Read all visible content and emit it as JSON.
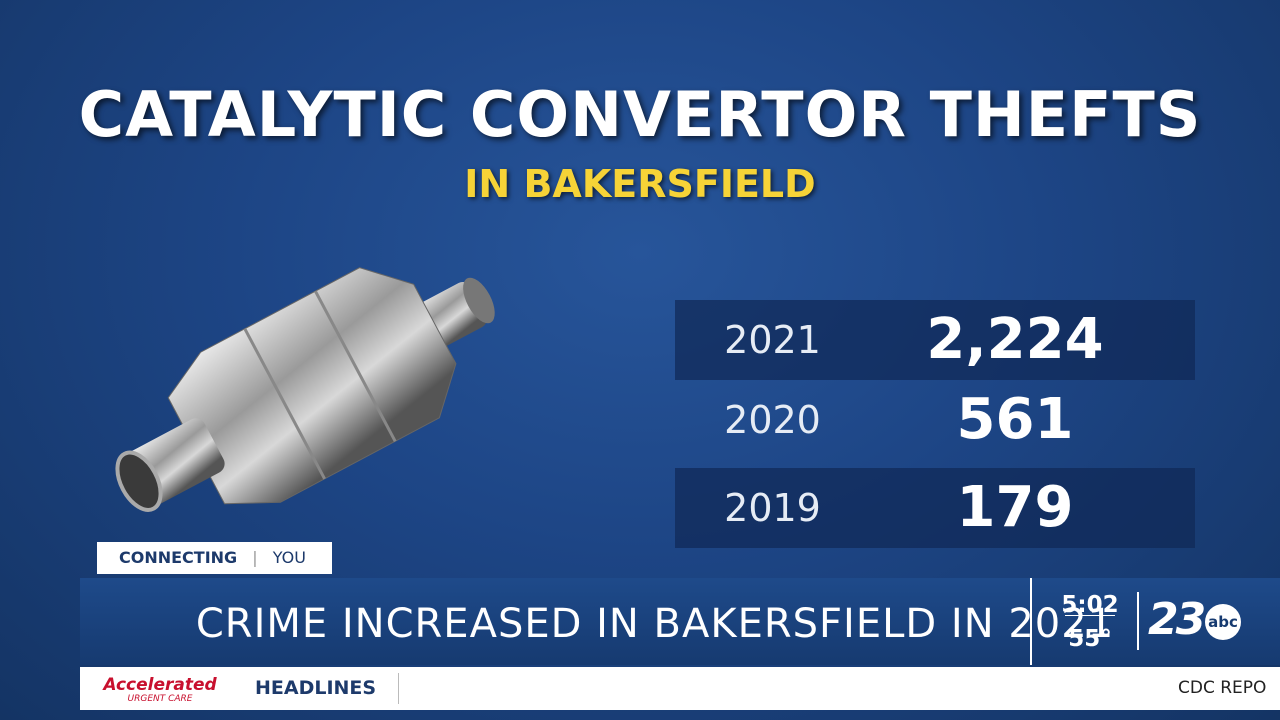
{
  "graphic": {
    "title": "CATALYTIC CONVERTOR THEFTS",
    "subtitle": "IN BAKERSFIELD",
    "rows": [
      [
        "2021",
        "2,224"
      ],
      [
        "2020",
        "561"
      ],
      [
        "2019",
        "179"
      ]
    ]
  },
  "lower_third": {
    "tag": "CONNECTING",
    "tag2": "YOU",
    "headline": "CRIME INCREASED IN BAKERSFIELD IN 2021",
    "time": "5:02",
    "temperature": "55°",
    "logo": "23",
    "logo_sub": "abc"
  },
  "ticker": {
    "sponsor": "Accelerated",
    "sponsor_sub": "URGENT CARE",
    "section": "HEADLINES",
    "text": "CDC REPO"
  }
}
